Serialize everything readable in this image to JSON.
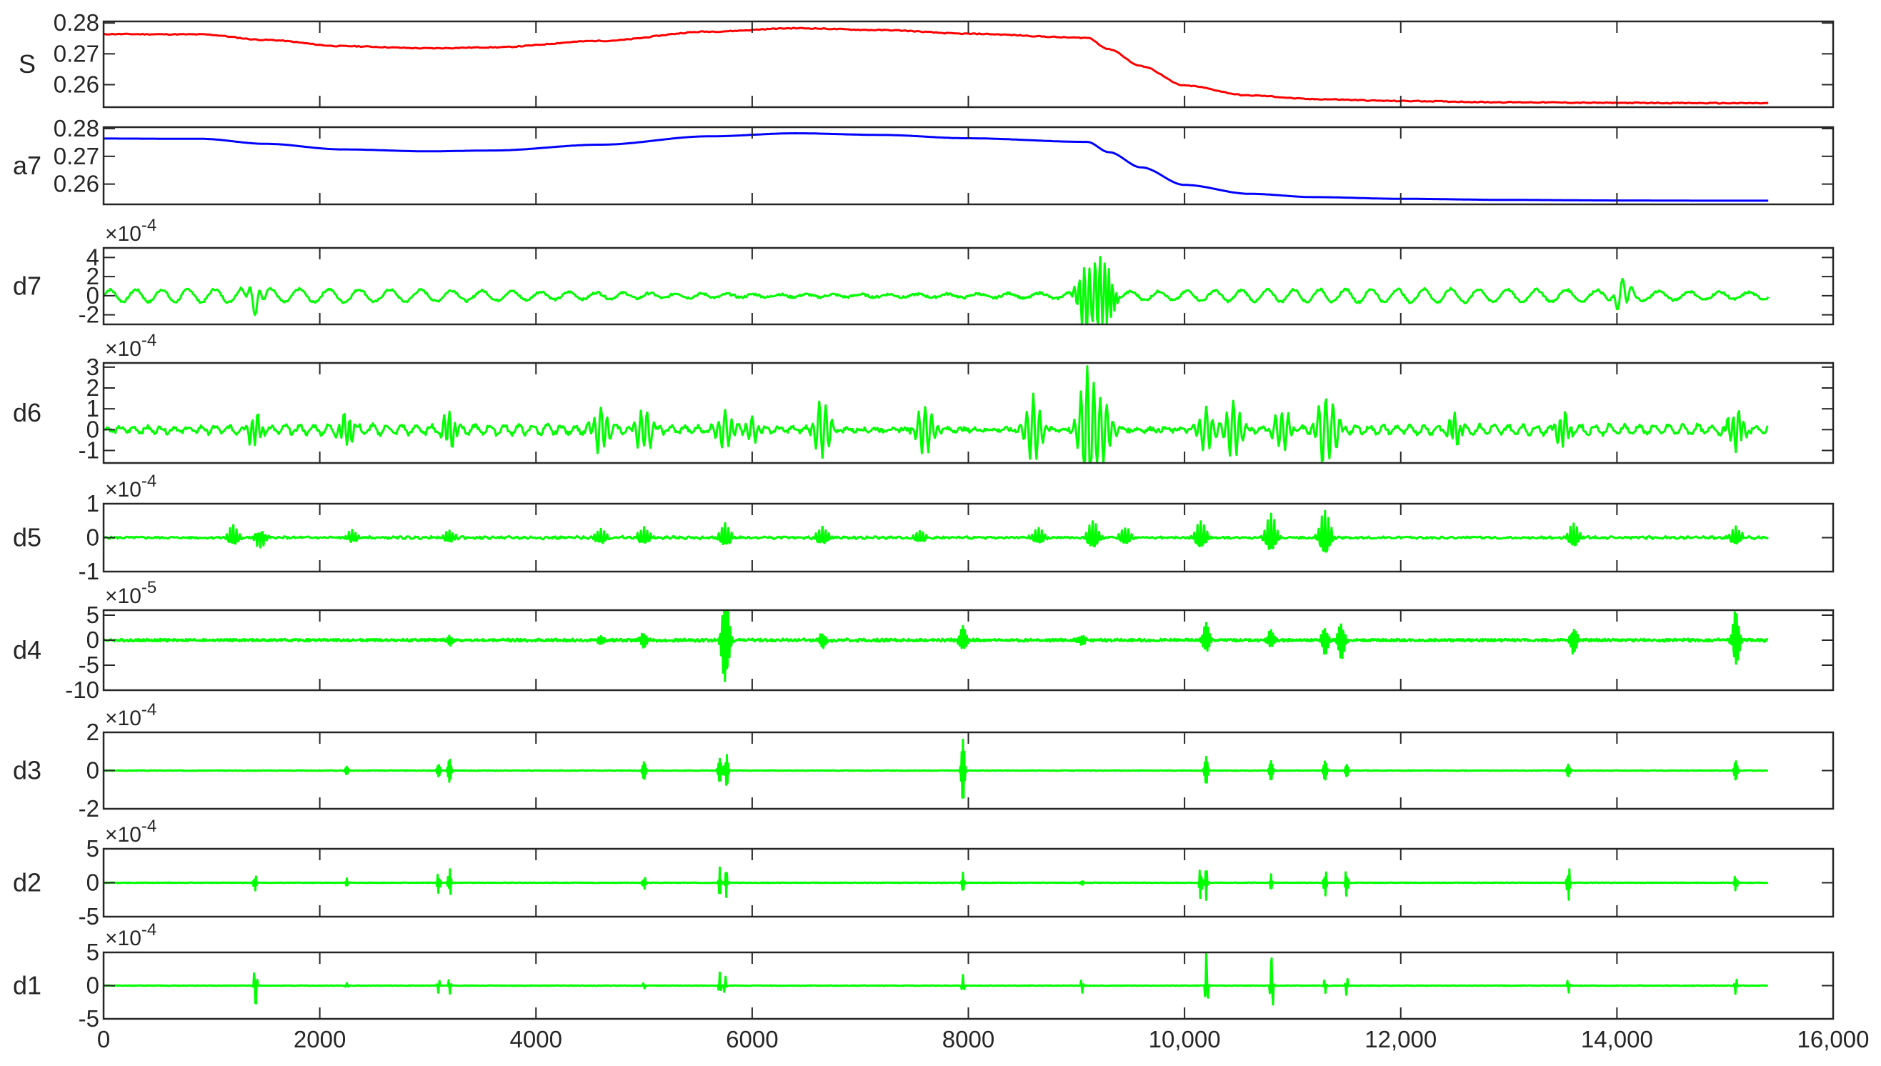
{
  "chart_data": [
    {
      "type": "line",
      "name": "S",
      "ylabel": "S",
      "color": "#ff0000",
      "exponent_label": "",
      "ylim": [
        0.2527,
        0.2805
      ],
      "yticks": [
        0.26,
        0.27,
        0.28
      ],
      "yticklabels": [
        "0.26",
        "0.27",
        "0.28"
      ],
      "xlim": [
        0,
        16000
      ],
      "signal": "trend",
      "data": {
        "x": [
          0,
          900,
          1500,
          2200,
          3000,
          3600,
          4600,
          5600,
          6400,
          7200,
          8000,
          9100,
          9300,
          9600,
          10000,
          10600,
          11200,
          12000,
          13000,
          14000,
          15000,
          15400
        ],
        "y": [
          0.2764,
          0.2763,
          0.2745,
          0.2725,
          0.2718,
          0.2721,
          0.2742,
          0.2772,
          0.2783,
          0.2777,
          0.2765,
          0.2752,
          0.2715,
          0.266,
          0.2597,
          0.2565,
          0.2553,
          0.2547,
          0.2543,
          0.2541,
          0.254,
          0.254
        ]
      }
    },
    {
      "type": "line",
      "name": "a7",
      "ylabel": "a7",
      "color": "#0000ff",
      "exponent_label": "",
      "ylim": [
        0.2527,
        0.2805
      ],
      "yticks": [
        0.26,
        0.27,
        0.28
      ],
      "yticklabels": [
        "0.26",
        "0.27",
        "0.28"
      ],
      "xlim": [
        0,
        16000
      ],
      "signal": "trend",
      "data": {
        "x": [
          0,
          900,
          1500,
          2200,
          3000,
          3600,
          4600,
          5600,
          6400,
          7200,
          8000,
          9100,
          9300,
          9600,
          10000,
          10600,
          11200,
          12000,
          13000,
          14000,
          15000,
          15400
        ],
        "y": [
          0.2764,
          0.2763,
          0.2745,
          0.2725,
          0.2718,
          0.2721,
          0.2742,
          0.2772,
          0.2783,
          0.2777,
          0.2765,
          0.2752,
          0.2715,
          0.266,
          0.2597,
          0.2565,
          0.2553,
          0.2547,
          0.2543,
          0.2541,
          0.254,
          0.254
        ]
      }
    },
    {
      "type": "line",
      "name": "d7",
      "ylabel": "d7",
      "color": "#00ff00",
      "exponent_label": "×10",
      "exponent": "-4",
      "ylim": [
        -3,
        5
      ],
      "yticks": [
        -2,
        0,
        2,
        4
      ],
      "yticklabels": [
        "-2",
        "0",
        "2",
        "4"
      ],
      "xlim": [
        0,
        16000
      ],
      "signal": "oscillation",
      "x_end": 15400,
      "seed": 7,
      "base_amp": 0.7,
      "period": 260,
      "noise": 0.12,
      "bursts": [
        [
          9120,
          4.5,
          70,
          9
        ],
        [
          9200,
          -3.2,
          60,
          9
        ],
        [
          9300,
          2.0,
          50,
          9
        ],
        [
          14050,
          1.5,
          60,
          4
        ],
        [
          1400,
          -1.4,
          60,
          4
        ]
      ]
    },
    {
      "type": "line",
      "name": "d6",
      "ylabel": "d6",
      "color": "#00ff00",
      "exponent_label": "×10",
      "exponent": "-4",
      "ylim": [
        -1.6,
        3.2
      ],
      "yticks": [
        -1,
        0,
        1,
        2,
        3
      ],
      "yticklabels": [
        "-1",
        "0",
        "1",
        "2",
        "3"
      ],
      "xlim": [
        0,
        16000
      ],
      "signal": "oscillation",
      "x_end": 15400,
      "seed": 6,
      "base_amp": 0.22,
      "period": 130,
      "noise": 0.1,
      "bursts": [
        [
          1400,
          -0.8,
          50,
          6
        ],
        [
          2250,
          -0.8,
          50,
          6
        ],
        [
          3200,
          0.9,
          50,
          6
        ],
        [
          4600,
          1.0,
          60,
          6
        ],
        [
          5000,
          -1.0,
          60,
          6
        ],
        [
          5750,
          0.9,
          60,
          6
        ],
        [
          6000,
          0.6,
          60,
          6
        ],
        [
          6650,
          -1.4,
          60,
          6
        ],
        [
          7600,
          1.2,
          60,
          6
        ],
        [
          8600,
          1.6,
          60,
          6
        ],
        [
          9100,
          3.0,
          60,
          6
        ],
        [
          9250,
          -1.4,
          60,
          6
        ],
        [
          10200,
          1.0,
          60,
          6
        ],
        [
          10450,
          1.4,
          60,
          6
        ],
        [
          10900,
          1.0,
          60,
          6
        ],
        [
          11300,
          1.9,
          60,
          6
        ],
        [
          11350,
          -1.5,
          60,
          6
        ],
        [
          12500,
          0.7,
          50,
          6
        ],
        [
          13500,
          -0.8,
          50,
          6
        ],
        [
          15100,
          -1.0,
          50,
          6
        ]
      ]
    },
    {
      "type": "line",
      "name": "d5",
      "ylabel": "d5",
      "color": "#00ff00",
      "exponent_label": "×10",
      "exponent": "-4",
      "ylim": [
        -1,
        1
      ],
      "yticks": [
        -1,
        0,
        1
      ],
      "yticklabels": [
        "-1",
        "0",
        "1"
      ],
      "xlim": [
        0,
        16000
      ],
      "signal": "oscillation",
      "x_end": 15400,
      "seed": 5,
      "base_amp": 0.02,
      "period": 70,
      "noise": 0.03,
      "bursts": [
        [
          1200,
          0.35,
          40,
          8
        ],
        [
          1450,
          -0.3,
          40,
          8
        ],
        [
          2300,
          0.2,
          40,
          8
        ],
        [
          3200,
          0.2,
          40,
          8
        ],
        [
          4600,
          0.25,
          40,
          8
        ],
        [
          5000,
          0.3,
          40,
          8
        ],
        [
          5750,
          0.4,
          40,
          8
        ],
        [
          6650,
          0.3,
          40,
          8
        ],
        [
          7550,
          0.2,
          40,
          8
        ],
        [
          8650,
          0.3,
          40,
          8
        ],
        [
          9150,
          0.5,
          40,
          8
        ],
        [
          9450,
          0.3,
          40,
          8
        ],
        [
          10150,
          0.5,
          40,
          8
        ],
        [
          10800,
          0.7,
          40,
          8
        ],
        [
          11300,
          0.8,
          40,
          8
        ],
        [
          13600,
          0.4,
          40,
          8
        ],
        [
          15100,
          0.3,
          40,
          8
        ]
      ]
    },
    {
      "type": "line",
      "name": "d4",
      "ylabel": "d4",
      "color": "#00ff00",
      "exponent_label": "×10",
      "exponent": "-5",
      "ylim": [
        -10,
        6
      ],
      "yticks": [
        -10,
        -5,
        0,
        5
      ],
      "yticklabels": [
        "-10",
        "-5",
        "0",
        "5"
      ],
      "xlim": [
        0,
        16000
      ],
      "signal": "oscillation",
      "x_end": 15400,
      "seed": 4,
      "base_amp": 0.1,
      "period": 40,
      "noise": 0.25,
      "bursts": [
        [
          3200,
          1.0,
          25,
          8
        ],
        [
          4600,
          0.9,
          25,
          8
        ],
        [
          5000,
          1.5,
          25,
          8
        ],
        [
          5750,
          -6.8,
          25,
          8
        ],
        [
          5760,
          5.2,
          25,
          8
        ],
        [
          6650,
          1.5,
          25,
          8
        ],
        [
          7950,
          2.8,
          25,
          8
        ],
        [
          9050,
          1.2,
          25,
          8
        ],
        [
          10200,
          3.5,
          25,
          8
        ],
        [
          10800,
          2.0,
          25,
          8
        ],
        [
          11300,
          3.0,
          25,
          8
        ],
        [
          11450,
          4.0,
          25,
          8
        ],
        [
          13600,
          2.8,
          25,
          8
        ],
        [
          15100,
          -6.0,
          25,
          8
        ]
      ]
    },
    {
      "type": "line",
      "name": "d3",
      "ylabel": "d3",
      "color": "#00ff00",
      "exponent_label": "×10",
      "exponent": "-4",
      "ylim": [
        -2,
        2
      ],
      "yticks": [
        -2,
        0,
        2
      ],
      "yticklabels": [
        "-2",
        "0",
        "2"
      ],
      "xlim": [
        0,
        16000
      ],
      "signal": "oscillation",
      "x_end": 15400,
      "seed": 3,
      "base_amp": 0.0,
      "period": 20,
      "noise": 0.015,
      "bursts": [
        [
          2250,
          0.2,
          12,
          6
        ],
        [
          3100,
          0.6,
          12,
          6
        ],
        [
          3200,
          -1.2,
          12,
          6
        ],
        [
          5000,
          0.9,
          12,
          6
        ],
        [
          5700,
          0.6,
          12,
          6
        ],
        [
          5750,
          1.6,
          12,
          6
        ],
        [
          5760,
          -1.3,
          12,
          6
        ],
        [
          7950,
          1.6,
          12,
          6
        ],
        [
          10200,
          0.7,
          12,
          6
        ],
        [
          10800,
          0.5,
          12,
          6
        ],
        [
          11300,
          1.0,
          12,
          6
        ],
        [
          11500,
          0.6,
          12,
          6
        ],
        [
          13550,
          0.6,
          12,
          6
        ],
        [
          15100,
          1.0,
          12,
          6
        ]
      ]
    },
    {
      "type": "line",
      "name": "d2",
      "ylabel": "d2",
      "color": "#00ff00",
      "exponent_label": "×10",
      "exponent": "-4",
      "ylim": [
        -5,
        5
      ],
      "yticks": [
        -5,
        0,
        5
      ],
      "yticklabels": [
        "-5",
        "0",
        "5"
      ],
      "xlim": [
        0,
        16000
      ],
      "signal": "oscillation",
      "x_end": 15400,
      "seed": 2,
      "base_amp": 0.0,
      "period": 20,
      "noise": 0.04,
      "bursts": [
        [
          1400,
          1.5,
          10,
          6
        ],
        [
          2250,
          0.6,
          10,
          6
        ],
        [
          3100,
          2.0,
          10,
          6
        ],
        [
          3200,
          -2.7,
          10,
          6
        ],
        [
          5000,
          1.2,
          10,
          6
        ],
        [
          5700,
          2.2,
          10,
          6
        ],
        [
          5760,
          -2.1,
          10,
          6
        ],
        [
          7950,
          1.5,
          10,
          6
        ],
        [
          9050,
          0.4,
          10,
          6
        ],
        [
          10150,
          3.0,
          10,
          6
        ],
        [
          10200,
          -2.5,
          10,
          6
        ],
        [
          10800,
          1.2,
          10,
          6
        ],
        [
          11300,
          2.5,
          10,
          6
        ],
        [
          11500,
          2.5,
          10,
          6
        ],
        [
          13550,
          3.3,
          10,
          6
        ],
        [
          15100,
          1.5,
          10,
          6
        ]
      ]
    },
    {
      "type": "line",
      "name": "d1",
      "ylabel": "d1",
      "color": "#00ff00",
      "exponent_label": "×10",
      "exponent": "-4",
      "ylim": [
        -5,
        5
      ],
      "yticks": [
        -5,
        0,
        5
      ],
      "yticklabels": [
        "-5",
        "0",
        "5"
      ],
      "xlim": [
        0,
        16000
      ],
      "signal": "oscillation",
      "x_end": 15400,
      "seed": 1,
      "base_amp": 0.0,
      "period": 20,
      "noise": 0.04,
      "bursts": [
        [
          1400,
          3.0,
          8,
          6
        ],
        [
          1410,
          -2.7,
          8,
          6
        ],
        [
          2250,
          0.4,
          8,
          6
        ],
        [
          3100,
          1.2,
          8,
          6
        ],
        [
          3200,
          1.4,
          8,
          6
        ],
        [
          5000,
          0.5,
          8,
          6
        ],
        [
          5700,
          2.0,
          8,
          6
        ],
        [
          5750,
          -1.5,
          8,
          6
        ],
        [
          7950,
          1.6,
          8,
          6
        ],
        [
          9050,
          1.2,
          8,
          6
        ],
        [
          10200,
          4.8,
          8,
          6
        ],
        [
          10210,
          -3.0,
          8,
          6
        ],
        [
          10800,
          3.5,
          8,
          6
        ],
        [
          10810,
          -4.7,
          8,
          6
        ],
        [
          11300,
          1.2,
          8,
          6
        ],
        [
          11500,
          1.6,
          8,
          6
        ],
        [
          13550,
          1.2,
          8,
          6
        ],
        [
          15100,
          1.4,
          8,
          6
        ]
      ]
    }
  ],
  "x_axis": {
    "ticks": [
      0,
      2000,
      4000,
      6000,
      8000,
      10000,
      12000,
      14000,
      16000
    ],
    "ticklabels": [
      "0",
      "2000",
      "4000",
      "6000",
      "8000",
      "10,000",
      "12,000",
      "14,000",
      "16,000"
    ]
  }
}
